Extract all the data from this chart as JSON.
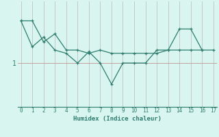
{
  "xlabel": "Humidex (Indice chaleur)",
  "x": [
    0,
    1,
    2,
    3,
    4,
    5,
    6,
    7,
    8,
    9,
    10,
    11,
    12,
    13,
    14,
    15,
    16,
    17
  ],
  "line1_y": [
    4.8,
    4.8,
    3.5,
    4.0,
    3.0,
    3.0,
    2.8,
    3.0,
    2.8,
    2.8,
    2.8,
    2.8,
    2.8,
    3.0,
    3.0,
    3.0,
    3.0,
    3.0
  ],
  "line2_y": [
    4.8,
    3.2,
    3.8,
    3.0,
    2.8,
    2.2,
    2.9,
    2.2,
    0.9,
    2.2,
    2.2,
    2.2,
    3.0,
    3.0,
    4.3,
    4.3,
    3.0,
    null
  ],
  "line_color": "#2e7d6e",
  "bg_color": "#d8f5f0",
  "vgrid_color": "#b8b8b8",
  "hgrid_color": "#c8a0a0",
  "ytick_val": 2.2,
  "ytick_label": "1",
  "ylim": [
    -0.5,
    6.0
  ],
  "xlim": [
    -0.3,
    17.3
  ]
}
